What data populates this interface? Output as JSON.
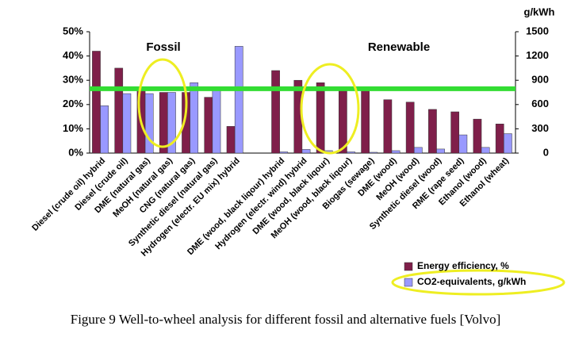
{
  "chart_data": {
    "type": "bar",
    "caption": "Figure 9  Well-to-wheel analysis for different fossil and alternative fuels [Volvo]",
    "y2label": "g/kWh",
    "annotations": [
      "Fossil",
      "Renewable"
    ],
    "categories": [
      "Diesel (crude oil) hybrid",
      "Diesel (crude oil)",
      "DME (natural gas)",
      "MeOH (natural gas)",
      "CNG (natural gas)",
      "Synthetic diesel (natural gas)",
      "Hydrogen (electr. EU mix) hybrid",
      null,
      "DME (wood, black liqour) hybrid",
      "Hydrogen (electr. wind) hybrid",
      "DME (wood, black liqour)",
      "MeOH (wood, black liqour)",
      "Biogas (sewage)",
      "DME (wood)",
      "MeOH (wood)",
      "Synthetic diesel (wood)",
      "RME (rape seed)",
      "Ethanol (wood)",
      "Ethanol (wheat)"
    ],
    "series": [
      {
        "name": "Energy efficiency, %",
        "color": "#7f1f4a",
        "values": [
          42,
          35,
          26,
          25,
          25,
          23,
          11,
          null,
          34,
          30,
          29,
          26,
          26,
          22,
          21,
          18,
          17,
          14,
          12
        ]
      },
      {
        "name": "CO2-equivalents, g/kWh",
        "color": "#9999ff",
        "axis": "y2",
        "values": [
          585,
          735,
          735,
          750,
          870,
          810,
          1320,
          null,
          15,
          45,
          30,
          15,
          10,
          30,
          70,
          50,
          225,
          70,
          240
        ]
      }
    ],
    "reference_line": {
      "value": 26.5,
      "color": "#33dd33"
    },
    "ylim": [
      0,
      50
    ],
    "yticks": [
      {
        "value": 0,
        "label": "0%"
      },
      {
        "value": 10,
        "label": "10%"
      },
      {
        "value": 20,
        "label": "20%"
      },
      {
        "value": 30,
        "label": "30%"
      },
      {
        "value": 40,
        "label": "40%"
      },
      {
        "value": 50,
        "label": "50%"
      }
    ],
    "y2lim": [
      0,
      1500
    ],
    "y2ticks": [
      0,
      300,
      600,
      900,
      1200,
      1500
    ],
    "legend": "lower right"
  }
}
